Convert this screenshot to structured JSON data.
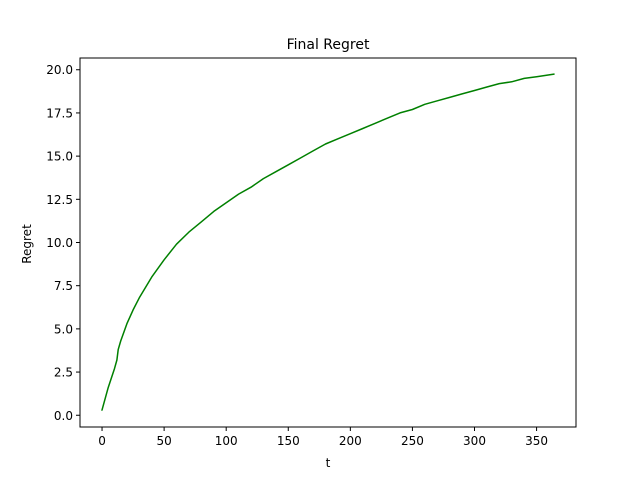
{
  "chart_data": {
    "type": "line",
    "title": "Final Regret",
    "xlabel": "t",
    "ylabel": "Regret",
    "xlim": [
      -17.75,
      381.75
    ],
    "ylim": [
      -0.68,
      20.68
    ],
    "x_ticks": [
      0,
      50,
      100,
      150,
      200,
      250,
      300,
      350
    ],
    "x_tick_labels": [
      "0",
      "50",
      "100",
      "150",
      "200",
      "250",
      "300",
      "350"
    ],
    "y_ticks": [
      0,
      2.5,
      5,
      7.5,
      10,
      12.5,
      15,
      17.5,
      20
    ],
    "y_tick_labels": [
      "0.0",
      "2.5",
      "5.0",
      "7.5",
      "10.0",
      "12.5",
      "15.0",
      "17.5",
      "20.0"
    ],
    "grid": false,
    "legend": "none",
    "series": [
      {
        "color": "#008000",
        "x": [
          0,
          5,
          10,
          12,
          13,
          15,
          20,
          25,
          30,
          40,
          50,
          60,
          70,
          80,
          90,
          100,
          110,
          120,
          130,
          140,
          150,
          160,
          170,
          180,
          190,
          200,
          210,
          220,
          230,
          240,
          250,
          260,
          270,
          280,
          290,
          300,
          310,
          320,
          330,
          340,
          350,
          364
        ],
        "y": [
          0.3,
          1.6,
          2.7,
          3.2,
          3.8,
          4.3,
          5.3,
          6.1,
          6.8,
          8.0,
          9.0,
          9.9,
          10.6,
          11.2,
          11.8,
          12.3,
          12.8,
          13.2,
          13.7,
          14.1,
          14.5,
          14.9,
          15.3,
          15.7,
          16.0,
          16.3,
          16.6,
          16.9,
          17.2,
          17.5,
          17.7,
          18.0,
          18.2,
          18.4,
          18.6,
          18.8,
          19.0,
          19.2,
          19.3,
          19.5,
          19.6,
          19.75
        ]
      }
    ]
  }
}
